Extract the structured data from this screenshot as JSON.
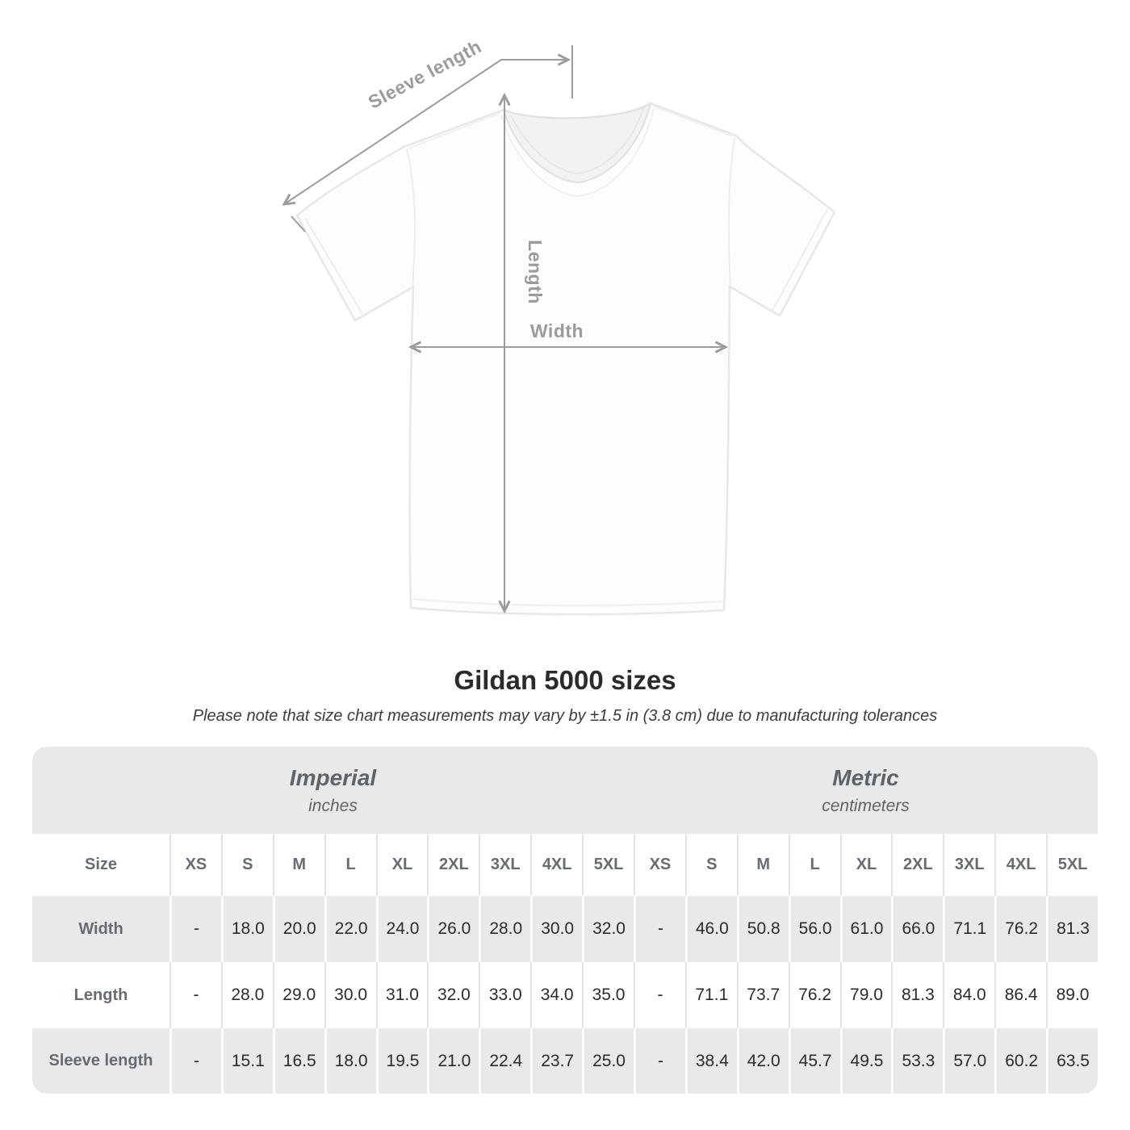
{
  "shirt_diagram": {
    "sleeve_length_label": "Sleeve length",
    "length_label": "Length",
    "width_label": "Width",
    "annotation_color": "#9b9b9b"
  },
  "heading": {
    "title": "Gildan 5000 sizes",
    "subtitle": "Please note that size chart measurements may vary by ±1.5 in (3.8 cm) due to manufacturing tolerances"
  },
  "table": {
    "sections": [
      {
        "label": "Imperial",
        "sublabel": "inches"
      },
      {
        "label": "Metric",
        "sublabel": "centimeters"
      }
    ],
    "size_header": "Size",
    "columns": [
      "XS",
      "S",
      "M",
      "L",
      "XL",
      "2XL",
      "3XL",
      "4XL",
      "5XL"
    ],
    "rows": [
      {
        "label": "Width",
        "imperial": [
          "-",
          "18.0",
          "20.0",
          "22.0",
          "24.0",
          "26.0",
          "28.0",
          "30.0",
          "32.0"
        ],
        "metric": [
          "-",
          "46.0",
          "50.8",
          "56.0",
          "61.0",
          "66.0",
          "71.1",
          "76.2",
          "81.3"
        ]
      },
      {
        "label": "Length",
        "imperial": [
          "-",
          "28.0",
          "29.0",
          "30.0",
          "31.0",
          "32.0",
          "33.0",
          "34.0",
          "35.0"
        ],
        "metric": [
          "-",
          "71.1",
          "73.7",
          "76.2",
          "79.0",
          "81.3",
          "84.0",
          "86.4",
          "89.0"
        ]
      },
      {
        "label": "Sleeve length",
        "imperial": [
          "-",
          "15.1",
          "16.5",
          "18.0",
          "19.5",
          "21.0",
          "22.4",
          "23.7",
          "25.0"
        ],
        "metric": [
          "-",
          "38.4",
          "42.0",
          "45.7",
          "49.5",
          "53.3",
          "57.0",
          "60.2",
          "63.5"
        ]
      }
    ],
    "colors": {
      "band": "#e9e9e9",
      "shaded_row": "#e9e9e9",
      "thin_separator": "#e3e3e3",
      "white_separator": "#ffffff",
      "header_text": "#666c71",
      "value_text": "#2b2b2b"
    }
  }
}
